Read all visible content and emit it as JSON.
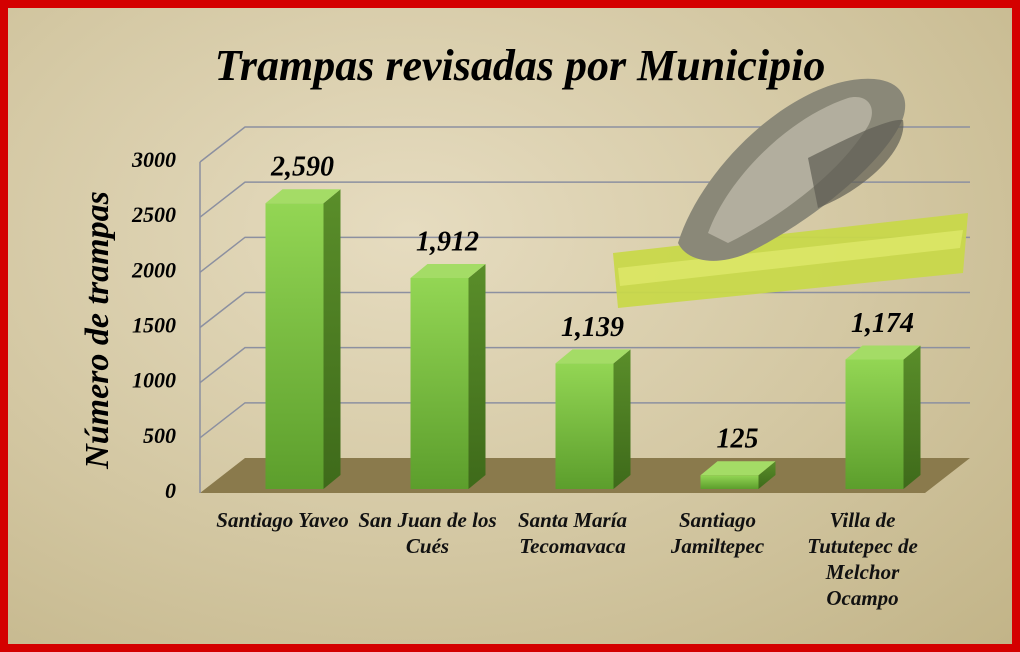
{
  "chart_data": {
    "type": "bar3d",
    "title": "Trampas revisadas por Municipio",
    "y_axis_title": "Número de trampas",
    "categories": [
      "Santiago Yaveo",
      "San Juan de los Cués",
      "Santa María Tecomavaca",
      "Santiago Jamiltepec",
      "Villa de Tututepec de Melchor Ocampo"
    ],
    "values": [
      2590,
      1912,
      1139,
      125,
      1174
    ],
    "value_labels": [
      "2,590",
      "1,912",
      "1,139",
      "125",
      "1,174"
    ],
    "color": "#7cc242",
    "ylim": [
      0,
      3000
    ],
    "yticks": [
      0,
      500,
      1000,
      1500,
      2000,
      2500,
      3000
    ],
    "grid": true
  }
}
